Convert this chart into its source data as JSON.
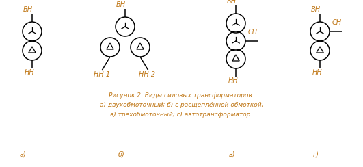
{
  "bg_color": "#ffffff",
  "line_color": "#000000",
  "text_color": "#c07818",
  "fig_width": 5.31,
  "fig_height": 2.44,
  "caption_line1": "Рисунок 2. Виды силовых трансформаторов.",
  "caption_line2": "а) двухобмоточный; б) с расщеплённой обмоткой;",
  "caption_line3": "в) трёхобмоточный; г) автотрансформатор.",
  "label_BH": "ВН",
  "label_NN": "НН",
  "label_NN1": "НН 1",
  "label_NN2": "НН 2",
  "label_SN": "СН",
  "label_a": "а)",
  "label_b": "б)",
  "label_v": "в)",
  "label_g": "г)",
  "r": 14,
  "lw": 1.1,
  "star_r": 6,
  "delta_r": 6,
  "text_fs": 7.0,
  "cap_fs": 6.5
}
